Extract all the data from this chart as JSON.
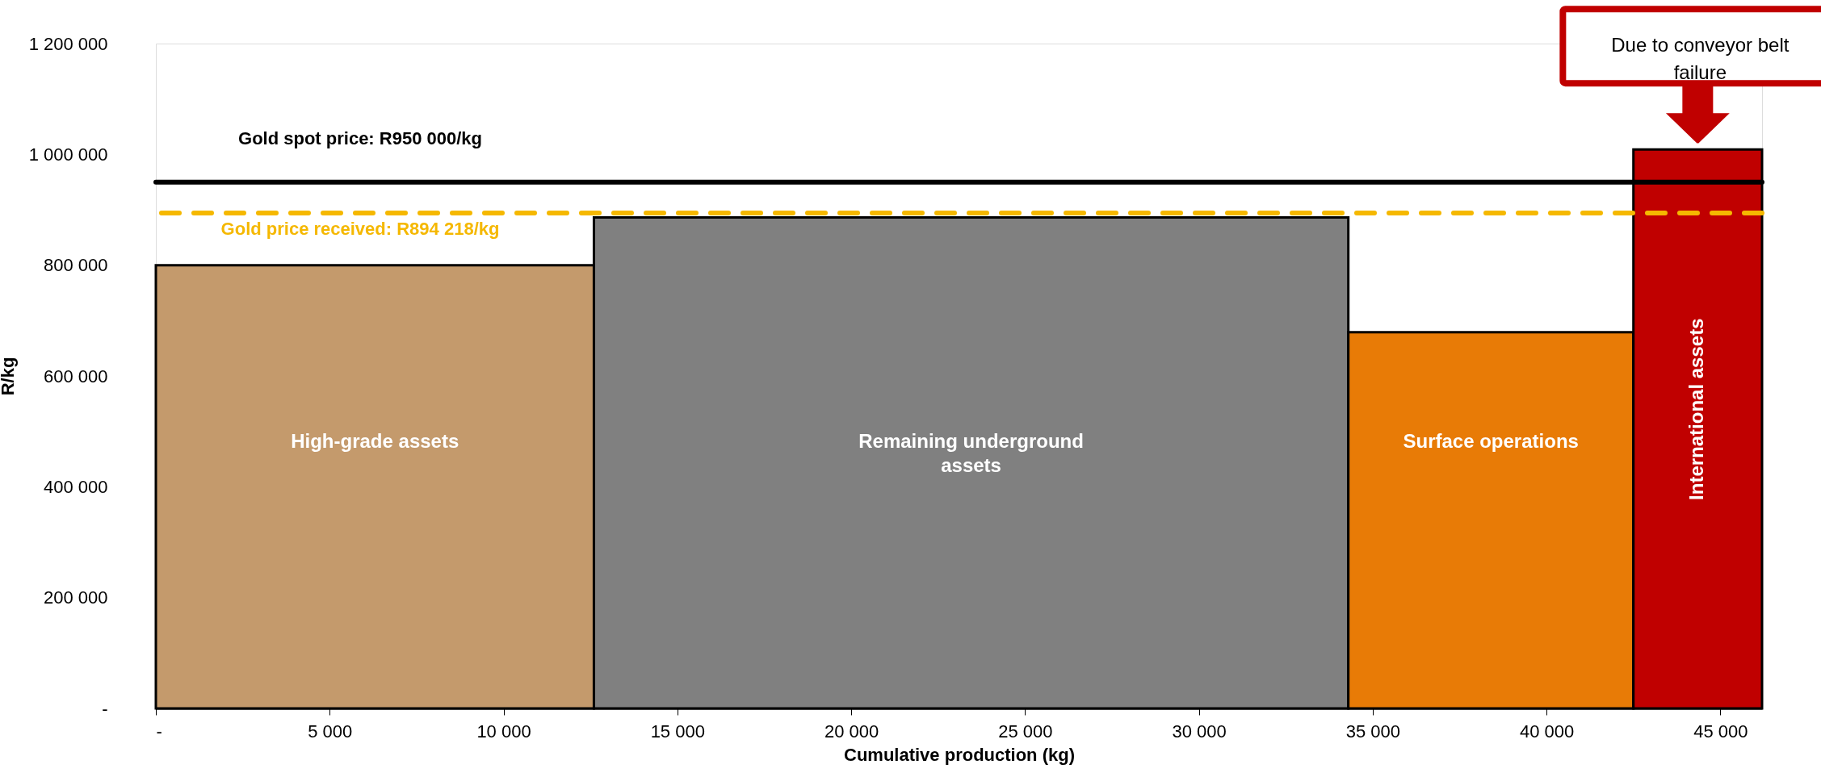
{
  "chart_data": {
    "type": "histogram",
    "bins": [
      0,
      12600,
      34300,
      42500,
      46200
    ],
    "values": [
      800000,
      886000,
      679000,
      1009000
    ],
    "colors": [
      "#c49a6c",
      "#808080",
      "#e87b06",
      "#c00000"
    ],
    "xlabel": "Cumulative production (kg)",
    "ylabel": "R/kg",
    "xlim": [
      0,
      46200
    ],
    "xticks": [
      {
        "value": 0,
        "label": "-"
      },
      {
        "value": 5000,
        "label": "5 000"
      },
      {
        "value": 10000,
        "label": "10 000"
      },
      {
        "value": 15000,
        "label": "15 000"
      },
      {
        "value": 20000,
        "label": "20 000"
      },
      {
        "value": 25000,
        "label": "25 000"
      },
      {
        "value": 30000,
        "label": "30 000"
      },
      {
        "value": 35000,
        "label": "35 000"
      },
      {
        "value": 40000,
        "label": "40 000"
      },
      {
        "value": 45000,
        "label": "45 000"
      }
    ],
    "ylim": [
      0,
      1200000
    ],
    "yticks": [
      {
        "value": 0,
        "label": "-"
      },
      {
        "value": 200000,
        "label": "200 000"
      },
      {
        "value": 400000,
        "label": "400 000"
      },
      {
        "value": 600000,
        "label": "600 000"
      },
      {
        "value": 800000,
        "label": "800 000"
      },
      {
        "value": 1000000,
        "label": "1 000 000"
      },
      {
        "value": 1200000,
        "label": "1 200 000"
      }
    ],
    "ref_lines": [
      {
        "axis": "y",
        "value": 950000,
        "label": "Gold spot price: R950 000/kg",
        "color": "#000000",
        "line_style": "solid"
      },
      {
        "axis": "y",
        "value": 894218,
        "label": "Gold price received: R894 218/kg",
        "color": "#f5b800",
        "line_style": "dashed"
      }
    ],
    "categories": [
      "High-grade assets",
      "Remaining underground\nassets",
      "Surface operations",
      "International assets"
    ],
    "annotations": [
      "Due to conveyor belt\nfailure"
    ],
    "grid": false
  }
}
